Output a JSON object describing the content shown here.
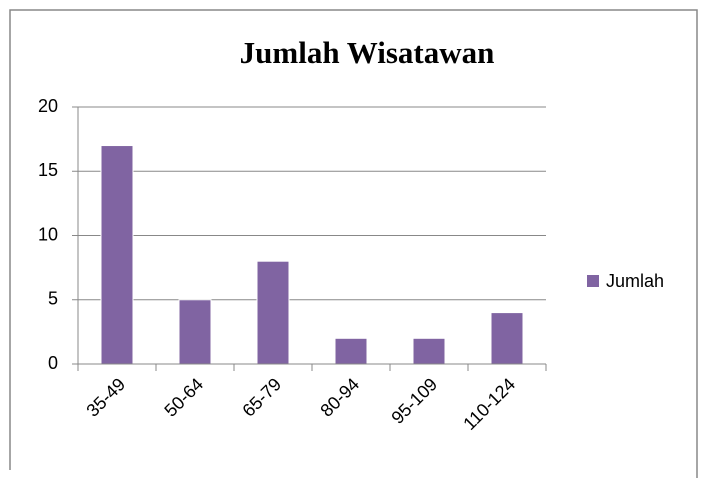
{
  "chart_data": {
    "type": "bar",
    "title": "Jumlah Wisatawan",
    "categories": [
      "35-49",
      "50-64",
      "65-79",
      "80-94",
      "95-109",
      "110-124"
    ],
    "series": [
      {
        "name": "Jumlah",
        "color": "#8064a2",
        "values": [
          17,
          5,
          8,
          2,
          2,
          4
        ]
      }
    ],
    "ylim": [
      0,
      20
    ],
    "yticks": [
      0,
      5,
      10,
      15,
      20
    ],
    "grid": true,
    "legend": "right"
  }
}
